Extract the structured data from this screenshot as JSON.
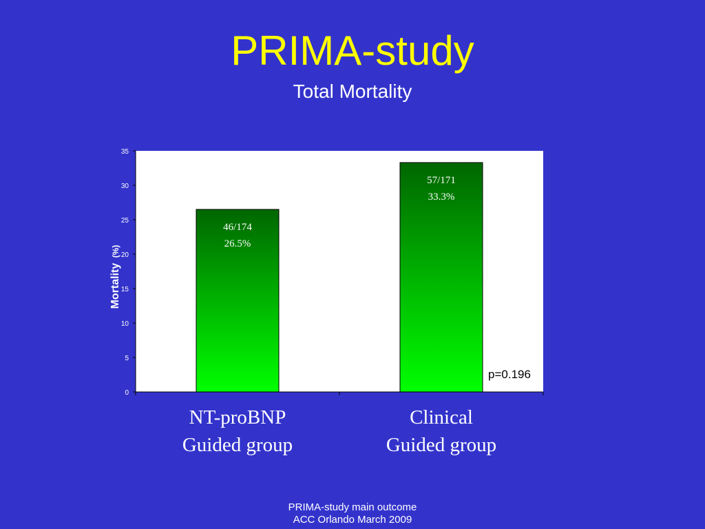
{
  "slide": {
    "title": "PRIMA-study",
    "subtitle": "Total Mortality",
    "footer_line1": "PRIMA-study main outcome",
    "footer_line2": "ACC Orlando March 2009",
    "background_color": "#3333cc",
    "title_color": "#ffff00"
  },
  "chart_data": {
    "type": "bar",
    "title": "",
    "ylabel": "Mortality (%)",
    "ylabel_main": "Mortality",
    "ylabel_unit": "(%)",
    "ylim": [
      0,
      35
    ],
    "yticks": [
      "0",
      "5",
      "10",
      "15",
      "20",
      "25",
      "30",
      "35"
    ],
    "categories": [
      {
        "line1": "NT-proBNP",
        "line2": "Guided group"
      },
      {
        "line1": "Clinical",
        "line2": "Guided group"
      }
    ],
    "values": [
      26.5,
      33.3
    ],
    "data_labels": [
      {
        "line1": "46/174",
        "line2": "26.5%"
      },
      {
        "line1": "57/171",
        "line2": "33.3%"
      }
    ],
    "annotation": "p=0.196",
    "grid": false,
    "legend": "none",
    "bar_gradient": [
      "#006600",
      "#00ff00"
    ],
    "plot_background": "#ffffff"
  }
}
